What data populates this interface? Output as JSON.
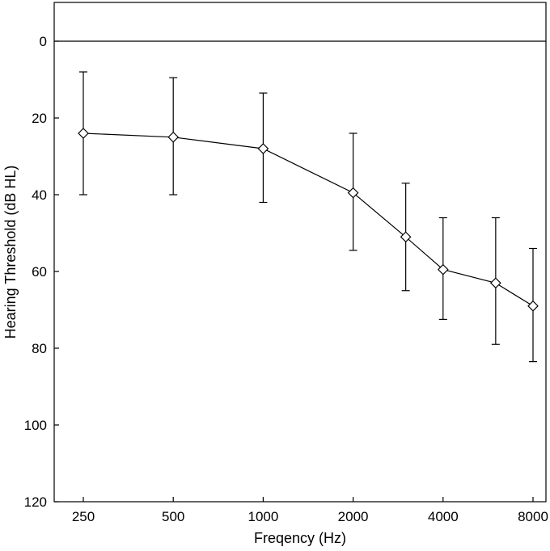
{
  "chart_data": {
    "type": "line",
    "title": "",
    "xlabel": "Freqency (Hz)",
    "ylabel": "Hearing Threshold (dB HL)",
    "x_scale": "log2",
    "y_inverted": true,
    "ylim": [
      0,
      120
    ],
    "yticks": [
      0,
      20,
      40,
      60,
      80,
      100,
      120
    ],
    "xticks": [
      250,
      500,
      1000,
      2000,
      4000,
      8000
    ],
    "xtick_labels": [
      "250",
      "500",
      "1000",
      "2000",
      "4000",
      "8000"
    ],
    "grid": false,
    "reference_line_y": 0,
    "marker": "diamond",
    "series": [
      {
        "x": [
          250,
          500,
          1000,
          2000,
          3000,
          4000,
          6000,
          8000
        ],
        "y": [
          24,
          25,
          28,
          39.5,
          51,
          59.5,
          63,
          69
        ],
        "error_low": [
          40,
          40,
          42,
          54.5,
          65,
          72.5,
          79,
          83.5
        ],
        "error_high": [
          8,
          9.5,
          13.5,
          24,
          37,
          46,
          46,
          54
        ]
      }
    ]
  }
}
